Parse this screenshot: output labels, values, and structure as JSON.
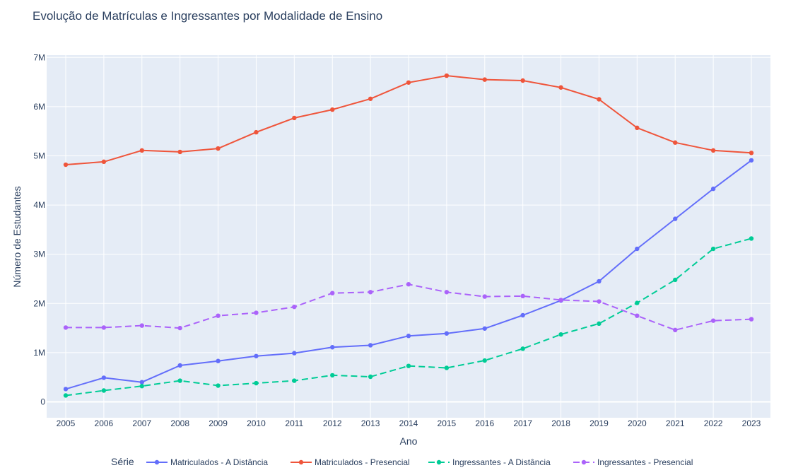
{
  "chart_data": {
    "type": "line",
    "title": "Evolução de Matrículas e Ingressantes por Modalidade de Ensino",
    "xlabel": "Ano",
    "ylabel": "Número de Estudantes",
    "x": [
      2005,
      2006,
      2007,
      2008,
      2009,
      2010,
      2011,
      2012,
      2013,
      2014,
      2015,
      2016,
      2017,
      2018,
      2019,
      2020,
      2021,
      2022,
      2023
    ],
    "xtick_labels": [
      "2005",
      "2006",
      "2007",
      "2008",
      "2009",
      "2010",
      "2011",
      "2012",
      "2013",
      "2014",
      "2015",
      "2016",
      "2017",
      "2018",
      "2019",
      "2020",
      "2021",
      "2022",
      "2023"
    ],
    "ylim": [
      -300000,
      7000000
    ],
    "yticks": [
      0,
      1000000,
      2000000,
      3000000,
      4000000,
      5000000,
      6000000,
      7000000
    ],
    "ytick_labels": [
      "0",
      "1M",
      "2M",
      "3M",
      "4M",
      "5M",
      "6M",
      "7M"
    ],
    "grid": true,
    "legend": {
      "title": "Série",
      "placement": "bottom"
    },
    "series": [
      {
        "name": "Matriculados - A Distância",
        "color": "#636efa",
        "dash": "solid",
        "values": [
          260000,
          490000,
          400000,
          740000,
          830000,
          930000,
          990000,
          1110000,
          1150000,
          1340000,
          1390000,
          1490000,
          1760000,
          2060000,
          2450000,
          3110000,
          3720000,
          4330000,
          4910000
        ]
      },
      {
        "name": "Matriculados - Presencial",
        "color": "#ef553b",
        "dash": "solid",
        "values": [
          4820000,
          4880000,
          5110000,
          5080000,
          5150000,
          5480000,
          5770000,
          5940000,
          6160000,
          6490000,
          6630000,
          6550000,
          6530000,
          6390000,
          6150000,
          5570000,
          5270000,
          5110000,
          5060000
        ]
      },
      {
        "name": "Ingressantes - A Distância",
        "color": "#00cc96",
        "dash": "dashed",
        "values": [
          130000,
          230000,
          320000,
          430000,
          330000,
          380000,
          430000,
          540000,
          510000,
          730000,
          690000,
          840000,
          1080000,
          1370000,
          1590000,
          2010000,
          2480000,
          3110000,
          3320000
        ]
      },
      {
        "name": "Ingressantes - Presencial",
        "color": "#ab63fa",
        "dash": "dashed",
        "values": [
          1510000,
          1510000,
          1550000,
          1500000,
          1750000,
          1810000,
          1930000,
          2210000,
          2230000,
          2390000,
          2230000,
          2140000,
          2150000,
          2070000,
          2040000,
          1750000,
          1460000,
          1650000,
          1680000
        ]
      }
    ]
  }
}
